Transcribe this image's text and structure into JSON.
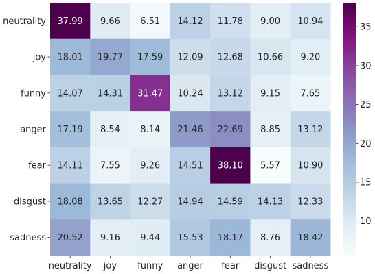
{
  "chart_data": {
    "type": "heatmap",
    "title": "",
    "xlabel": "",
    "ylabel": "",
    "rows": [
      "neutrality",
      "joy",
      "funny",
      "anger",
      "fear",
      "disgust",
      "sadness"
    ],
    "columns": [
      "neutrality",
      "joy",
      "funny",
      "anger",
      "fear",
      "disgust",
      "sadness"
    ],
    "values": [
      [
        37.99,
        9.66,
        6.51,
        14.12,
        11.78,
        9.0,
        10.94
      ],
      [
        18.01,
        19.77,
        17.59,
        12.09,
        12.68,
        10.66,
        9.2
      ],
      [
        14.07,
        14.31,
        31.47,
        10.24,
        13.12,
        9.15,
        7.65
      ],
      [
        17.19,
        8.54,
        8.14,
        21.46,
        22.69,
        8.85,
        13.12
      ],
      [
        14.11,
        7.55,
        9.26,
        14.51,
        38.1,
        5.57,
        10.9
      ],
      [
        18.08,
        13.65,
        12.27,
        14.94,
        14.59,
        14.13,
        12.33
      ],
      [
        20.52,
        9.16,
        9.44,
        15.53,
        18.17,
        8.76,
        18.42
      ]
    ],
    "value_labels": [
      [
        "37.99",
        "9.66",
        "6.51",
        "14.12",
        "11.78",
        "9.00",
        "10.94"
      ],
      [
        "18.01",
        "19.77",
        "17.59",
        "12.09",
        "12.68",
        "10.66",
        "9.20"
      ],
      [
        "14.07",
        "14.31",
        "31.47",
        "10.24",
        "13.12",
        "9.15",
        "7.65"
      ],
      [
        "17.19",
        "8.54",
        "8.14",
        "21.46",
        "22.69",
        "8.85",
        "13.12"
      ],
      [
        "14.11",
        "7.55",
        "9.26",
        "14.51",
        "38.10",
        "5.57",
        "10.90"
      ],
      [
        "18.08",
        "13.65",
        "12.27",
        "14.94",
        "14.59",
        "14.13",
        "12.33"
      ],
      [
        "20.52",
        "9.16",
        "9.44",
        "15.53",
        "18.17",
        "8.76",
        "18.42"
      ]
    ],
    "colormap": "BuPu",
    "color_range": [
      5.57,
      38.1
    ],
    "colorbar": {
      "ticks": [
        10,
        15,
        20,
        25,
        30,
        35
      ],
      "tick_labels": [
        "10",
        "15",
        "20",
        "25",
        "30",
        "35"
      ],
      "placement": "right"
    },
    "grid": false,
    "legend": "none"
  },
  "colors": {
    "text_dark": "#262626",
    "text_light": "#ffffff",
    "cmap_stops": [
      "#f7fcfd",
      "#e0ecf4",
      "#bfd3e6",
      "#9ebcda",
      "#8c96c6",
      "#8c6bb1",
      "#88419d",
      "#810f7c",
      "#4d004b"
    ]
  }
}
